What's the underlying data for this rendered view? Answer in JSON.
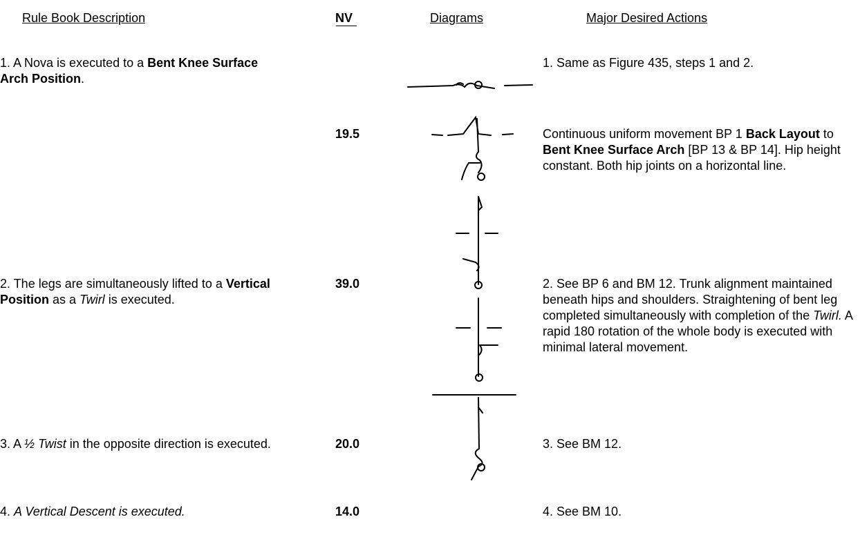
{
  "header": {
    "columns": [
      "Rule Book Description",
      "NV",
      "Diagrams",
      "Major Desired Actions"
    ]
  },
  "rows": [
    {
      "description": [
        {
          "text": "1. A Nova is executed to a "
        },
        {
          "text": "Bent Knee Surface Arch Position",
          "style": "bold"
        },
        {
          "text": "."
        }
      ],
      "actions": [
        {
          "text": "1. Same as Figure 435, steps 1 and 2."
        }
      ]
    },
    {
      "nv": "19.5",
      "actions": [
        {
          "text": "Continuous uniform movement BP 1 "
        },
        {
          "text": "Back Layout",
          "style": "bold"
        },
        {
          "text": " to "
        },
        {
          "text": "Bent Knee Surface Arch",
          "style": "bold"
        },
        {
          "text": " [BP 13 & BP 14]. Hip height constant. Both hip joints on a horizontal line."
        }
      ]
    },
    {
      "description": [
        {
          "text": "2. The legs are simultaneously lifted to a "
        },
        {
          "text": "Vertical Position",
          "style": "bold"
        },
        {
          "text": " as a "
        },
        {
          "text": "Twirl",
          "style": "italic"
        },
        {
          "text": " is executed."
        }
      ],
      "nv": "39.0",
      "actions": [
        {
          "text": "2. See BP 6 and BM 12. Trunk alignment maintained beneath hips and shoulders.  Straightening of bent leg completed simultaneously with completion of the "
        },
        {
          "text": "Twirl.",
          "style": "italic"
        },
        {
          "text": " A rapid 180 rotation of the whole body is executed with minimal lateral movement."
        }
      ]
    },
    {
      "description": [
        {
          "text": "3. A "
        },
        {
          "text": "½ Twist",
          "style": "italic"
        },
        {
          "text": " in the opposite direction is executed."
        }
      ],
      "nv": "20.0",
      "actions": [
        {
          "text": "3. See BM 12."
        }
      ]
    },
    {
      "description": [
        {
          "text": "4. "
        },
        {
          "text": "A Vertical Descent is executed.",
          "style": "italic"
        }
      ],
      "nv": "14.0",
      "actions": [
        {
          "text": "4. See BM 10."
        }
      ]
    }
  ]
}
